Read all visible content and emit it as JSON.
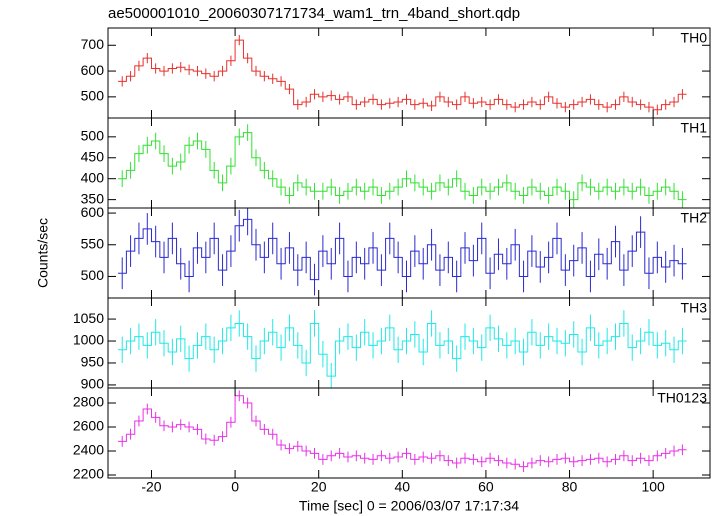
{
  "title": "ae500001010_20060307171734_wam1_trn_4band_short.qdp",
  "xlabel": "Time [sec] 0 = 2006/03/07 17:17:34",
  "ylabel": "Counts/sec",
  "chart_data": [
    {
      "type": "step",
      "label": "TH0",
      "color": "#e8302c",
      "yerr": 20,
      "xlim": [
        -30.4,
        113.6
      ],
      "xticks": [
        -20,
        0,
        20,
        40,
        60,
        80,
        100
      ],
      "ylim": [
        418,
        767
      ],
      "yticks": [
        500,
        600,
        700
      ],
      "x": [
        -27,
        -25,
        -23,
        -21,
        -19,
        -17,
        -15,
        -13,
        -11,
        -9,
        -7,
        -5,
        -3,
        -1,
        1,
        3,
        5,
        7,
        9,
        11,
        13,
        15,
        17,
        19,
        21,
        23,
        25,
        27,
        29,
        31,
        33,
        35,
        37,
        39,
        41,
        43,
        45,
        47,
        49,
        51,
        53,
        55,
        57,
        59,
        61,
        63,
        65,
        67,
        69,
        71,
        73,
        75,
        77,
        79,
        81,
        83,
        85,
        87,
        89,
        91,
        93,
        95,
        97,
        99,
        101,
        103,
        105,
        107
      ],
      "values": [
        560,
        580,
        620,
        650,
        610,
        600,
        610,
        615,
        605,
        600,
        590,
        580,
        600,
        640,
        720,
        650,
        600,
        580,
        570,
        560,
        530,
        470,
        480,
        510,
        500,
        505,
        490,
        500,
        470,
        480,
        490,
        470,
        475,
        480,
        490,
        470,
        475,
        465,
        500,
        480,
        470,
        500,
        475,
        480,
        470,
        490,
        470,
        460,
        470,
        480,
        470,
        500,
        475,
        460,
        470,
        480,
        490,
        470,
        460,
        470,
        500,
        480,
        470,
        460,
        450,
        470,
        480,
        510
      ]
    },
    {
      "type": "step",
      "label": "TH1",
      "color": "#33e033",
      "yerr": 20,
      "xlim": [
        -30.4,
        113.6
      ],
      "xticks": [
        -20,
        0,
        20,
        40,
        60,
        80,
        100
      ],
      "ylim": [
        330,
        545
      ],
      "yticks": [
        350,
        400,
        450,
        500
      ],
      "x": [
        -27,
        -25,
        -23,
        -21,
        -19,
        -17,
        -15,
        -13,
        -11,
        -9,
        -7,
        -5,
        -3,
        -1,
        1,
        3,
        5,
        7,
        9,
        11,
        13,
        15,
        17,
        19,
        21,
        23,
        25,
        27,
        29,
        31,
        33,
        35,
        37,
        39,
        41,
        43,
        45,
        47,
        49,
        51,
        53,
        55,
        57,
        59,
        61,
        63,
        65,
        67,
        69,
        71,
        73,
        75,
        77,
        79,
        81,
        83,
        85,
        87,
        89,
        91,
        93,
        95,
        97,
        99,
        101,
        103,
        105,
        107
      ],
      "values": [
        400,
        420,
        460,
        480,
        490,
        460,
        430,
        440,
        480,
        490,
        470,
        420,
        390,
        430,
        500,
        510,
        450,
        420,
        400,
        380,
        360,
        390,
        380,
        370,
        370,
        380,
        360,
        370,
        380,
        370,
        380,
        360,
        370,
        380,
        400,
        390,
        380,
        370,
        390,
        380,
        400,
        370,
        360,
        380,
        370,
        380,
        390,
        370,
        360,
        380,
        370,
        360,
        380,
        370,
        350,
        390,
        380,
        370,
        380,
        370,
        380,
        370,
        380,
        360,
        370,
        380,
        370,
        350
      ]
    },
    {
      "type": "step",
      "label": "TH2",
      "color": "#2a2ad0",
      "yerr": 25,
      "xlim": [
        -30.4,
        113.6
      ],
      "xticks": [
        -20,
        0,
        20,
        40,
        60,
        80,
        100
      ],
      "ylim": [
        466,
        608
      ],
      "yticks": [
        500,
        550,
        600
      ],
      "x": [
        -27,
        -25,
        -23,
        -21,
        -19,
        -17,
        -15,
        -13,
        -11,
        -9,
        -7,
        -5,
        -3,
        -1,
        1,
        3,
        5,
        7,
        9,
        11,
        13,
        15,
        17,
        19,
        21,
        23,
        25,
        27,
        29,
        31,
        33,
        35,
        37,
        39,
        41,
        43,
        45,
        47,
        49,
        51,
        53,
        55,
        57,
        59,
        61,
        63,
        65,
        67,
        69,
        71,
        73,
        75,
        77,
        79,
        81,
        83,
        85,
        87,
        89,
        91,
        93,
        95,
        97,
        99,
        101,
        103,
        105,
        107
      ],
      "values": [
        505,
        540,
        560,
        575,
        555,
        530,
        560,
        520,
        500,
        545,
        530,
        560,
        510,
        540,
        580,
        590,
        550,
        530,
        560,
        520,
        545,
        510,
        530,
        495,
        540,
        520,
        560,
        500,
        530,
        520,
        545,
        510,
        560,
        530,
        500,
        540,
        520,
        550,
        510,
        530,
        500,
        545,
        525,
        560,
        505,
        535,
        520,
        550,
        500,
        540,
        515,
        530,
        560,
        510,
        525,
        545,
        500,
        535,
        520,
        555,
        510,
        540,
        570,
        505,
        530,
        515,
        525,
        520
      ]
    },
    {
      "type": "step",
      "label": "TH3",
      "color": "#22e8e8",
      "yerr": 30,
      "xlim": [
        -30.4,
        113.6
      ],
      "xticks": [
        -20,
        0,
        20,
        40,
        60,
        80,
        100
      ],
      "ylim": [
        893,
        1098
      ],
      "yticks": [
        900,
        950,
        1000,
        1050
      ],
      "x": [
        -27,
        -25,
        -23,
        -21,
        -19,
        -17,
        -15,
        -13,
        -11,
        -9,
        -7,
        -5,
        -3,
        -1,
        1,
        3,
        5,
        7,
        9,
        11,
        13,
        15,
        17,
        19,
        21,
        23,
        25,
        27,
        29,
        31,
        33,
        35,
        37,
        39,
        41,
        43,
        45,
        47,
        49,
        51,
        53,
        55,
        57,
        59,
        61,
        63,
        65,
        67,
        69,
        71,
        73,
        75,
        77,
        79,
        81,
        83,
        85,
        87,
        89,
        91,
        93,
        95,
        97,
        99,
        101,
        103,
        105,
        107
      ],
      "values": [
        980,
        1000,
        1010,
        990,
        1020,
        995,
        975,
        1005,
        960,
        990,
        1010,
        980,
        1000,
        1030,
        1040,
        1010,
        960,
        1000,
        1020,
        985,
        1030,
        990,
        950,
        1040,
        970,
        920,
        1000,
        1010,
        985,
        1020,
        990,
        1000,
        1030,
        980,
        1000,
        1015,
        975,
        1040,
        990,
        1000,
        960,
        1010,
        1000,
        985,
        1030,
        1005,
        990,
        1000,
        975,
        1020,
        990,
        1010,
        1000,
        995,
        1015,
        975,
        1030,
        990,
        1000,
        1010,
        1040,
        985,
        1000,
        1020,
        990,
        995,
        980,
        1000
      ]
    },
    {
      "type": "step",
      "label": "TH0123",
      "color": "#e830e8",
      "yerr": 45,
      "xlim": [
        -30.4,
        113.6
      ],
      "xticks": [
        -20,
        0,
        20,
        40,
        60,
        80,
        100
      ],
      "ylim": [
        2175,
        2925
      ],
      "yticks": [
        2200,
        2400,
        2600,
        2800
      ],
      "x": [
        -27,
        -25,
        -23,
        -21,
        -19,
        -17,
        -15,
        -13,
        -11,
        -9,
        -7,
        -5,
        -3,
        -1,
        1,
        3,
        5,
        7,
        9,
        11,
        13,
        15,
        17,
        19,
        21,
        23,
        25,
        27,
        29,
        31,
        33,
        35,
        37,
        39,
        41,
        43,
        45,
        47,
        49,
        51,
        53,
        55,
        57,
        59,
        61,
        63,
        65,
        67,
        69,
        71,
        73,
        75,
        77,
        79,
        81,
        83,
        85,
        87,
        89,
        91,
        93,
        95,
        97,
        99,
        101,
        103,
        105,
        107
      ],
      "values": [
        2480,
        2540,
        2650,
        2750,
        2680,
        2610,
        2600,
        2620,
        2600,
        2580,
        2500,
        2490,
        2520,
        2640,
        2860,
        2800,
        2650,
        2580,
        2540,
        2450,
        2420,
        2440,
        2400,
        2380,
        2330,
        2360,
        2380,
        2350,
        2360,
        2340,
        2330,
        2360,
        2340,
        2350,
        2380,
        2330,
        2350,
        2340,
        2360,
        2320,
        2300,
        2340,
        2330,
        2310,
        2340,
        2320,
        2300,
        2290,
        2270,
        2300,
        2320,
        2310,
        2330,
        2340,
        2310,
        2320,
        2330,
        2340,
        2310,
        2330,
        2360,
        2320,
        2340,
        2320,
        2360,
        2380,
        2400,
        2410
      ]
    }
  ]
}
